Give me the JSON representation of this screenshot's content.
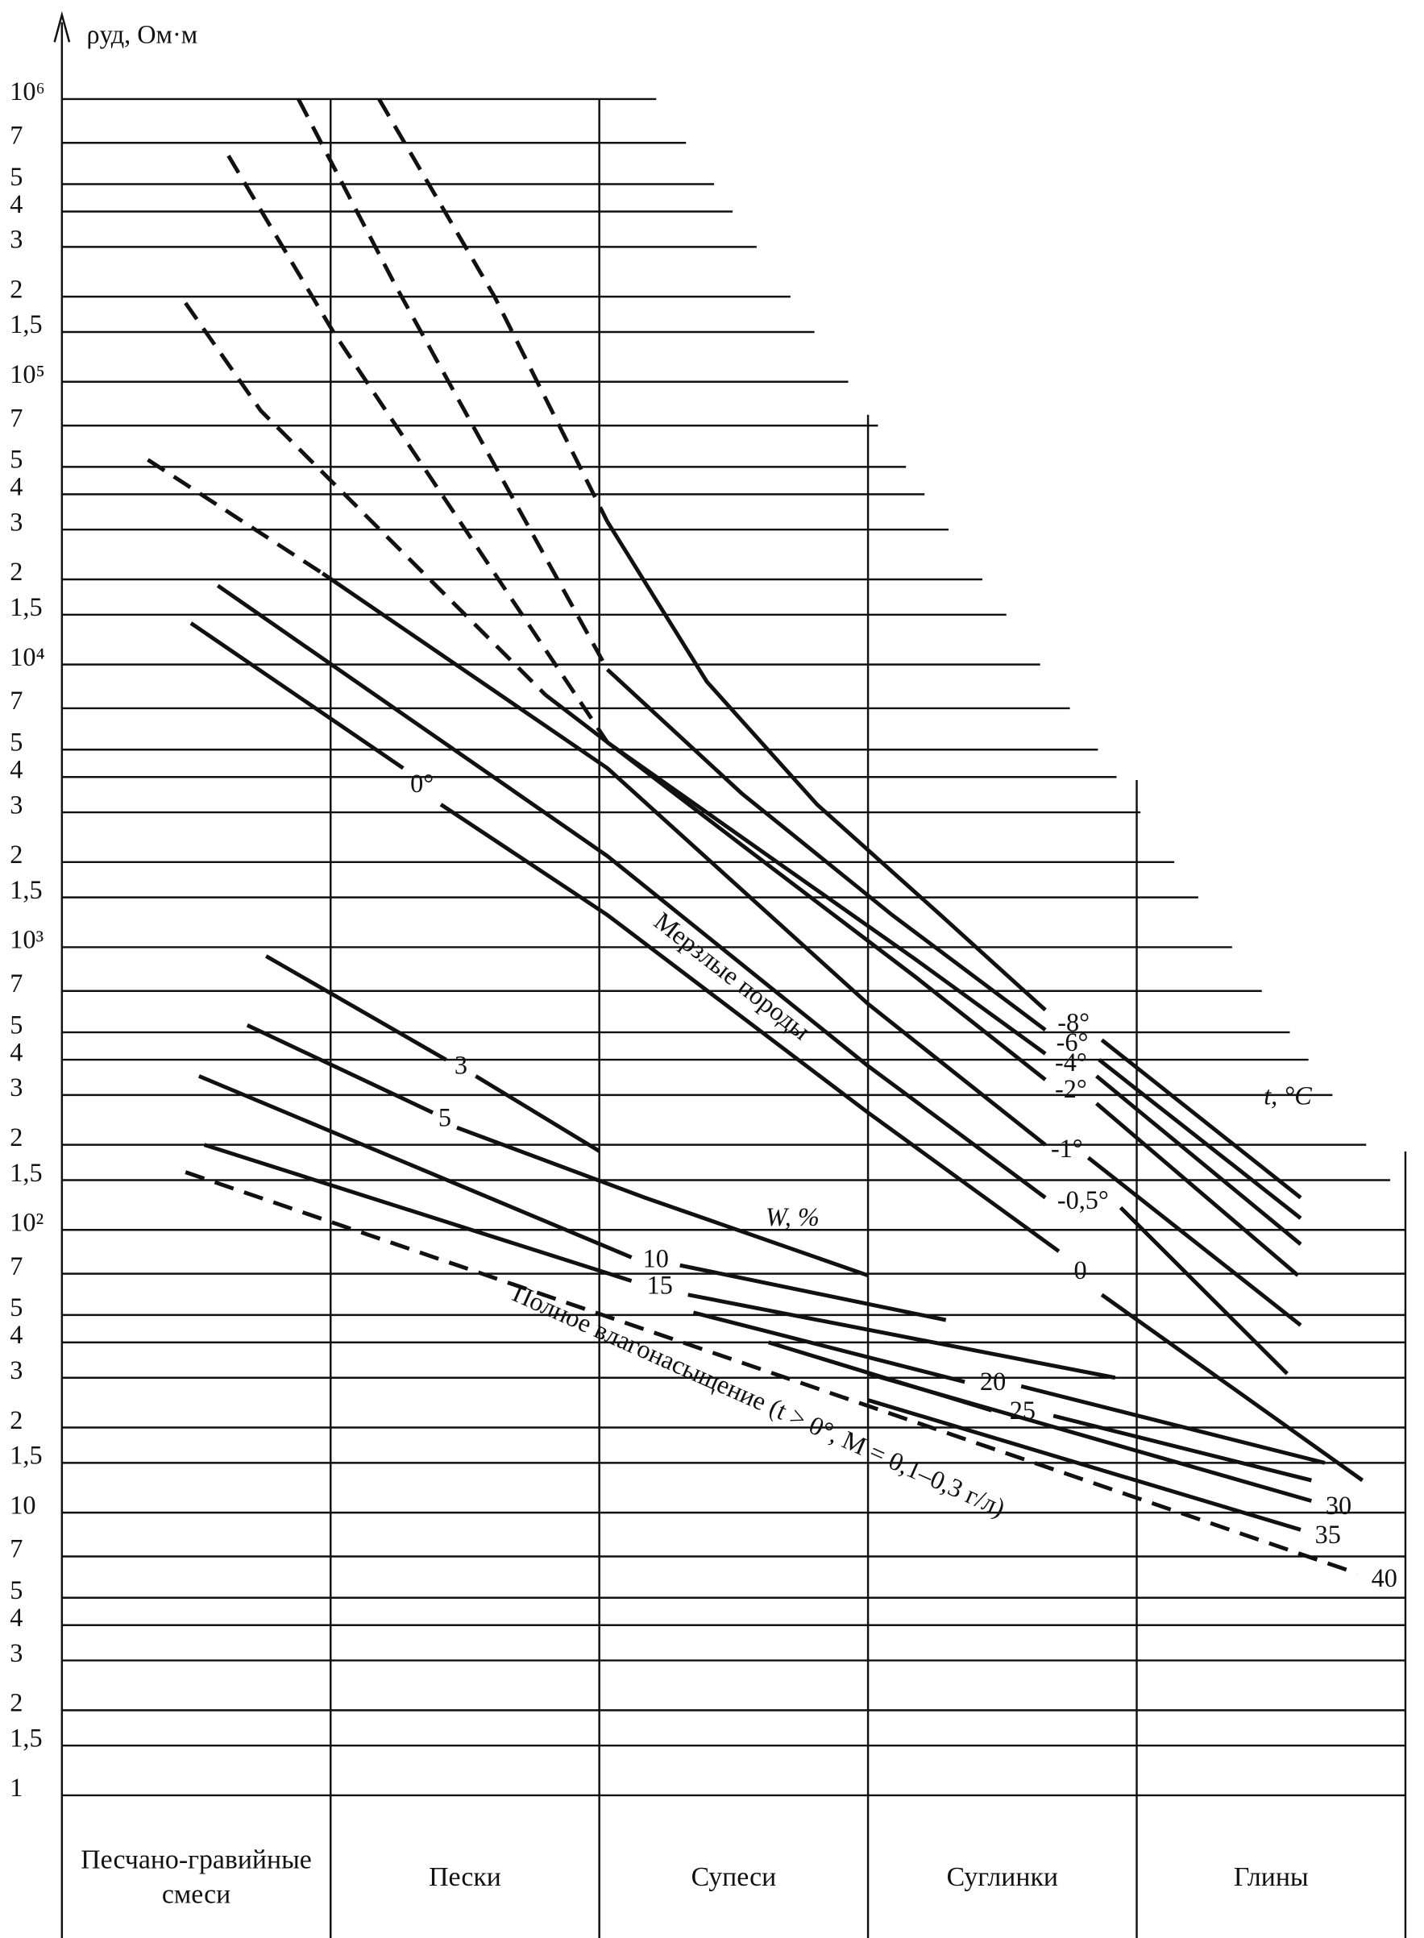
{
  "chart_data": {
    "type": "line",
    "y_label": "ρуд, Ом·м",
    "log_y": true,
    "grid": true,
    "color": "#111111",
    "ylim": [
      1,
      1000000
    ],
    "yticks": [
      1,
      {
        "value": 1.5,
        "label": "1,5"
      },
      2,
      3,
      4,
      5,
      7,
      10,
      {
        "value": 15,
        "label": "1,5"
      },
      {
        "value": 20,
        "label": "2"
      },
      {
        "value": 30,
        "label": "3"
      },
      {
        "value": 40,
        "label": "4"
      },
      {
        "value": 50,
        "label": "5"
      },
      {
        "value": 70,
        "label": "7"
      },
      {
        "value": 100,
        "label": "10²"
      },
      {
        "value": 150,
        "label": "1,5"
      },
      {
        "value": 200,
        "label": "2"
      },
      {
        "value": 300,
        "label": "3"
      },
      {
        "value": 400,
        "label": "4"
      },
      {
        "value": 500,
        "label": "5"
      },
      {
        "value": 700,
        "label": "7"
      },
      {
        "value": 1000,
        "label": "10³"
      },
      {
        "value": 1500,
        "label": "1,5"
      },
      {
        "value": 2000,
        "label": "2"
      },
      {
        "value": 3000,
        "label": "3"
      },
      {
        "value": 4000,
        "label": "4"
      },
      {
        "value": 5000,
        "label": "5"
      },
      {
        "value": 7000,
        "label": "7"
      },
      {
        "value": 10000,
        "label": "10⁴"
      },
      {
        "value": 15000,
        "label": "1,5"
      },
      {
        "value": 20000,
        "label": "2"
      },
      {
        "value": 30000,
        "label": "3"
      },
      {
        "value": 40000,
        "label": "4"
      },
      {
        "value": 50000,
        "label": "5"
      },
      {
        "value": 70000,
        "label": "7"
      },
      {
        "value": 100000,
        "label": "10⁵"
      },
      {
        "value": 150000,
        "label": "1,5"
      },
      {
        "value": 200000,
        "label": "2"
      },
      {
        "value": 300000,
        "label": "3"
      },
      {
        "value": 400000,
        "label": "4"
      },
      {
        "value": 500000,
        "label": "5"
      },
      {
        "value": 700000,
        "label": "7"
      },
      {
        "value": 1000000,
        "label": "10⁶"
      }
    ],
    "categories": [
      "Песчано-гравийные смеси",
      "Пески",
      "Супеси",
      "Суглинки",
      "Глины"
    ],
    "annotations": [
      "Мерзлые породы",
      "t, °C",
      "W, %",
      "Полное влагонасыщение (t > 0°, M = 0,1–0,3 г/л)"
    ],
    "series": [
      {
        "dashed": true,
        "x": [
          1.18,
          1.61,
          2.03
        ],
        "values": [
          1000000,
          200000,
          32000
        ]
      },
      {
        "name": "-8°",
        "x": [
          2.03,
          2.4,
          2.81,
          3.27,
          3.66,
          null,
          3.87,
          4.61
        ],
        "values": [
          32000,
          8700,
          3200,
          1300,
          600,
          null,
          470,
          130
        ]
      },
      {
        "dashed": true,
        "x": [
          0.88,
          1.24,
          2.03
        ],
        "values": [
          1000000,
          220000,
          9600
        ]
      },
      {
        "name": "-6°",
        "x": [
          2.03,
          2.53,
          3.09,
          3.66,
          null,
          3.86,
          4.61
        ],
        "values": [
          9600,
          3500,
          1300,
          510,
          null,
          400,
          110
        ]
      },
      {
        "dashed": true,
        "x": [
          0.62,
          1.01,
          2.03
        ],
        "values": [
          630000,
          150000,
          5300
        ]
      },
      {
        "name": "-4°",
        "x": [
          2.03,
          2.63,
          3.18,
          3.66,
          null,
          3.85,
          4.61
        ],
        "values": [
          5300,
          2100,
          900,
          420,
          null,
          350,
          89
        ]
      },
      {
        "dashed": true,
        "x": [
          0.46,
          0.74,
          1.8
        ],
        "values": [
          190000,
          79000,
          7800
        ]
      },
      {
        "name": "-2°",
        "x": [
          1.8,
          2.53,
          3.18,
          3.66,
          null,
          3.85,
          4.6
        ],
        "values": [
          7800,
          2300,
          780,
          340,
          null,
          280,
          69
        ]
      },
      {
        "dashed": true,
        "x": [
          0.32,
          0.97
        ],
        "values": [
          53000,
          21000
        ]
      },
      {
        "name": "-1°",
        "x": [
          0.97,
          2.03,
          3.0,
          3.66,
          null,
          3.82,
          4.61
        ],
        "values": [
          21000,
          4300,
          630,
          200,
          null,
          180,
          46
        ]
      },
      {
        "name": "-0,5°",
        "x": [
          0.58,
          2.03,
          3.0,
          3.66,
          null,
          3.94,
          4.56
        ],
        "values": [
          19000,
          2100,
          380,
          130,
          null,
          120,
          31
        ]
      },
      {
        "name": "0",
        "mid_label": "0°",
        "x": [
          0.48,
          1.27,
          null,
          1.41,
          2.03,
          3.0,
          3.71,
          null,
          3.87,
          4.84
        ],
        "values": [
          14000,
          4300,
          null,
          3200,
          1300,
          260,
          84,
          null,
          59,
          13
        ]
      },
      {
        "name": "3",
        "x": [
          0.76,
          1.43,
          null,
          1.54,
          2.0
        ],
        "values": [
          930,
          400,
          null,
          350,
          190
        ]
      },
      {
        "name": "5",
        "x": [
          0.69,
          1.38,
          null,
          1.47,
          2.17,
          3.0
        ],
        "values": [
          530,
          260,
          null,
          230,
          130,
          69
        ]
      },
      {
        "name": "10",
        "x": [
          0.51,
          2.12,
          null,
          2.3,
          3.29
        ],
        "values": [
          350,
          80,
          null,
          75,
          48
        ]
      },
      {
        "name": "15",
        "x": [
          0.53,
          2.12,
          null,
          2.33,
          3.92
        ],
        "values": [
          200,
          66,
          null,
          59,
          30
        ]
      },
      {
        "name": "20",
        "x": [
          2.35,
          3.36,
          null,
          3.57,
          4.7
        ],
        "values": [
          51,
          29,
          null,
          28,
          15
        ]
      },
      {
        "name": "25",
        "x": [
          2.63,
          3.46,
          null,
          3.69,
          4.65
        ],
        "values": [
          40,
          23,
          null,
          22,
          13
        ]
      },
      {
        "name": "30",
        "x": [
          3.0,
          4.65
        ],
        "values": [
          31,
          11
        ]
      },
      {
        "name": "35",
        "x": [
          3.0,
          4.61
        ],
        "values": [
          25,
          8.7
        ]
      },
      {
        "name": "40",
        "dashed": true,
        "x": [
          0.46,
          4.82
        ],
        "values": [
          160,
          6.1
        ]
      }
    ]
  }
}
